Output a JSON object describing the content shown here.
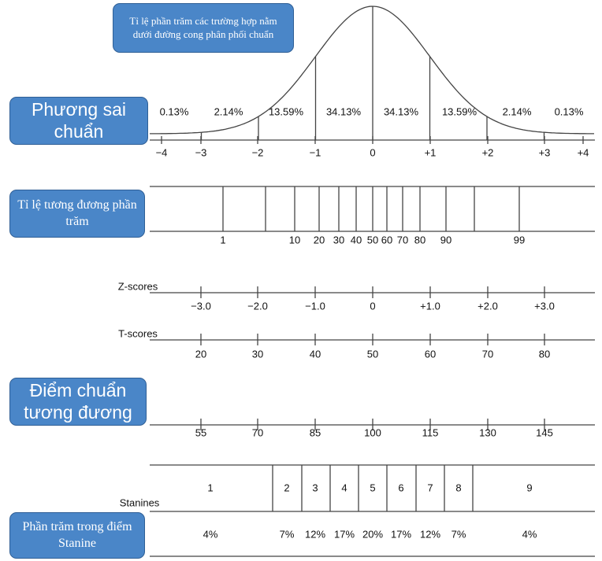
{
  "callout": "Tỉ lệ phần trăm các trường hợp nằm dưới đường cong phân phối chuẩn",
  "boxes": {
    "sd": "Phương sai chuẩn",
    "percentile": "Tỉ lệ tương đương phần trăm",
    "standard": "Điểm chuẩn tương đương",
    "stanine_percent": "Phần trăm trong điểm Stanine"
  },
  "curve_percentages": [
    "0.13%",
    "2.14%",
    "13.59%",
    "34.13%",
    "34.13%",
    "13.59%",
    "2.14%",
    "0.13%"
  ],
  "sd_ticks": [
    "−4",
    "−3",
    "−2",
    "−1",
    "0",
    "+1",
    "+2",
    "+3",
    "+4"
  ],
  "percentiles": [
    "1",
    "10",
    "20",
    "30",
    "40",
    "50",
    "60",
    "70",
    "80",
    "90",
    "99"
  ],
  "z_scores": {
    "label": "Z-scores",
    "ticks": [
      "−3.0",
      "−2.0",
      "−1.0",
      "0",
      "+1.0",
      "+2.0",
      "+3.0"
    ]
  },
  "t_scores": {
    "label": "T-scores",
    "ticks": [
      "20",
      "30",
      "40",
      "50",
      "60",
      "70",
      "80"
    ]
  },
  "standard_scores": [
    "55",
    "70",
    "85",
    "100",
    "115",
    "130",
    "145"
  ],
  "stanines": {
    "label": "Stanines",
    "numbers": [
      "1",
      "2",
      "3",
      "4",
      "5",
      "6",
      "7",
      "8",
      "9"
    ],
    "percents": [
      "4%",
      "7%",
      "12%",
      "17%",
      "20%",
      "17%",
      "12%",
      "7%",
      "4%"
    ]
  }
}
